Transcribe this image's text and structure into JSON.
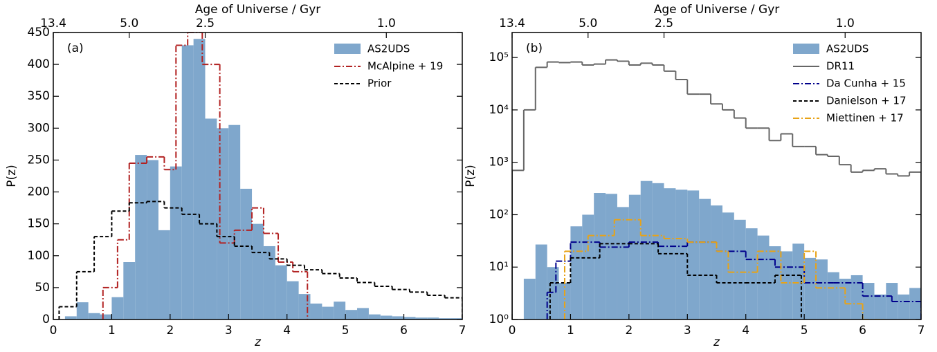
{
  "chart_data": [
    {
      "type": "histogram",
      "label": "(a)",
      "xlabel": "z",
      "ylabel": "P(z)",
      "x2label": "Age of Universe / Gyr",
      "xlim": [
        0,
        7
      ],
      "ylim": [
        0,
        450
      ],
      "log_y": false,
      "legend": "upper right",
      "xticks": [
        0,
        1,
        2,
        3,
        4,
        5,
        6,
        7
      ],
      "yticks": [
        0,
        50,
        100,
        150,
        200,
        250,
        300,
        350,
        400,
        450
      ],
      "x2ticks": [
        {
          "value": 0,
          "label": "13.4"
        },
        {
          "value": 1.3,
          "label": "5.0"
        },
        {
          "value": 2.6,
          "label": "2.5"
        },
        {
          "value": 5.7,
          "label": "1.0"
        }
      ],
      "series": [
        {
          "name": "AS2UDS",
          "kind": "bar",
          "color": "#7fa7cc",
          "bins": [
            0,
            0.2,
            0.4,
            0.6,
            0.8,
            1.0,
            1.2,
            1.4,
            1.6,
            1.8,
            2.0,
            2.2,
            2.4,
            2.6,
            2.8,
            3.0,
            3.2,
            3.4,
            3.6,
            3.8,
            4.0,
            4.2,
            4.4,
            4.6,
            4.8,
            5.0,
            5.2,
            5.4,
            5.6,
            5.8,
            6.0,
            6.2,
            6.4,
            6.6,
            6.8,
            7.0
          ],
          "values": [
            0,
            5,
            27,
            10,
            8,
            35,
            90,
            258,
            250,
            140,
            240,
            430,
            440,
            315,
            300,
            305,
            205,
            150,
            115,
            85,
            60,
            40,
            25,
            20,
            28,
            15,
            18,
            8,
            6,
            5,
            4,
            3,
            3,
            2,
            2
          ]
        },
        {
          "name": "McAlpine + 19",
          "kind": "step",
          "linestyle": "dashdot",
          "color": "#b22222",
          "bins": [
            0.85,
            1.1,
            1.3,
            1.6,
            1.9,
            2.1,
            2.3,
            2.55,
            2.85,
            3.1,
            3.4,
            3.6,
            3.85,
            4.1,
            4.35
          ],
          "values": [
            50,
            125,
            245,
            255,
            235,
            430,
            450,
            400,
            120,
            140,
            175,
            135,
            90,
            75
          ]
        },
        {
          "name": "Prior",
          "kind": "step",
          "linestyle": "dashed",
          "color": "#000000",
          "bins": [
            0.1,
            0.4,
            0.7,
            1.0,
            1.3,
            1.6,
            1.9,
            2.2,
            2.5,
            2.8,
            3.1,
            3.4,
            3.7,
            4.0,
            4.3,
            4.6,
            4.9,
            5.2,
            5.5,
            5.8,
            6.1,
            6.4,
            6.7,
            7.0
          ],
          "values": [
            20,
            75,
            130,
            170,
            183,
            185,
            175,
            165,
            150,
            130,
            115,
            105,
            95,
            85,
            78,
            72,
            65,
            58,
            52,
            47,
            43,
            38,
            34
          ]
        }
      ]
    },
    {
      "type": "histogram",
      "label": "(b)",
      "xlabel": "z",
      "ylabel": "P(z)",
      "x2label": "Age of Universe / Gyr",
      "xlim": [
        0,
        7
      ],
      "ylim": [
        1,
        300000
      ],
      "log_y": true,
      "legend": "upper right",
      "xticks": [
        0,
        1,
        2,
        3,
        4,
        5,
        6,
        7
      ],
      "yticks": [
        {
          "value": 1,
          "label": "10⁰"
        },
        {
          "value": 10,
          "label": "10¹"
        },
        {
          "value": 100,
          "label": "10²"
        },
        {
          "value": 1000,
          "label": "10³"
        },
        {
          "value": 10000,
          "label": "10⁴"
        },
        {
          "value": 100000,
          "label": "10⁵"
        }
      ],
      "x2ticks": [
        {
          "value": 0,
          "label": "13.4"
        },
        {
          "value": 1.3,
          "label": "5.0"
        },
        {
          "value": 2.6,
          "label": "2.5"
        },
        {
          "value": 5.7,
          "label": "1.0"
        }
      ],
      "series": [
        {
          "name": "AS2UDS",
          "kind": "bar",
          "color": "#7fa7cc",
          "bins": [
            0,
            0.2,
            0.4,
            0.6,
            0.8,
            1.0,
            1.2,
            1.4,
            1.6,
            1.8,
            2.0,
            2.2,
            2.4,
            2.6,
            2.8,
            3.0,
            3.2,
            3.4,
            3.6,
            3.8,
            4.0,
            4.2,
            4.4,
            4.6,
            4.8,
            5.0,
            5.2,
            5.4,
            5.6,
            5.8,
            6.0,
            6.2,
            6.4,
            6.6,
            6.8,
            7.0
          ],
          "values": [
            0,
            6,
            27,
            10,
            5,
            60,
            100,
            260,
            250,
            140,
            240,
            440,
            400,
            320,
            300,
            290,
            200,
            150,
            110,
            80,
            55,
            40,
            25,
            20,
            28,
            15,
            14,
            8,
            6,
            7,
            5,
            3,
            5,
            3,
            4
          ]
        },
        {
          "name": "DR11",
          "kind": "step",
          "linestyle": "solid",
          "color": "#666666",
          "bins": [
            0,
            0.2,
            0.4,
            0.6,
            0.8,
            1.0,
            1.2,
            1.4,
            1.6,
            1.8,
            2.0,
            2.2,
            2.4,
            2.6,
            2.8,
            3.0,
            3.2,
            3.4,
            3.6,
            3.8,
            4.0,
            4.2,
            4.4,
            4.6,
            4.8,
            5.0,
            5.2,
            5.4,
            5.6,
            5.8,
            6.0,
            6.2,
            6.4,
            6.6,
            6.8,
            7.0
          ],
          "values": [
            700,
            10000,
            65000,
            82000,
            80000,
            82000,
            72000,
            75000,
            90000,
            85000,
            72000,
            78000,
            72000,
            55000,
            38000,
            20000,
            20000,
            13000,
            10000,
            7000,
            4500,
            4500,
            2600,
            3500,
            2000,
            2000,
            1400,
            1300,
            900,
            650,
            700,
            750,
            600,
            550,
            650
          ]
        },
        {
          "name": "Da Cunha + 15",
          "kind": "step",
          "linestyle": "dashdot",
          "color": "#00008b",
          "bins": [
            0.6,
            0.75,
            1.0,
            1.5,
            2.0,
            2.5,
            3.0,
            3.5,
            4.0,
            4.5,
            5.0,
            5.5,
            6.0,
            6.5,
            7.0
          ],
          "values": [
            3.3,
            13,
            30,
            24,
            30,
            25,
            30,
            20,
            14,
            10,
            5,
            5,
            2.8,
            2.2
          ]
        },
        {
          "name": "Danielson + 17",
          "kind": "step",
          "linestyle": "dashed",
          "color": "#000000",
          "bins": [
            0.65,
            1.0,
            1.5,
            2.0,
            2.5,
            3.0,
            3.5,
            4.0,
            4.5,
            4.95
          ],
          "values": [
            5,
            15,
            28,
            28,
            18,
            7,
            5,
            5,
            7
          ]
        },
        {
          "name": "Miettinen + 17",
          "kind": "step",
          "linestyle": "dashdot",
          "color": "#e8a317",
          "bins": [
            0.9,
            1.3,
            1.75,
            2.2,
            2.6,
            3.0,
            3.5,
            3.7,
            4.2,
            4.6,
            5.0,
            5.2,
            5.7,
            6.0,
            6.4
          ],
          "values": [
            20,
            40,
            80,
            40,
            35,
            30,
            20,
            8,
            20,
            5,
            20,
            4,
            2,
            1
          ]
        }
      ]
    }
  ]
}
